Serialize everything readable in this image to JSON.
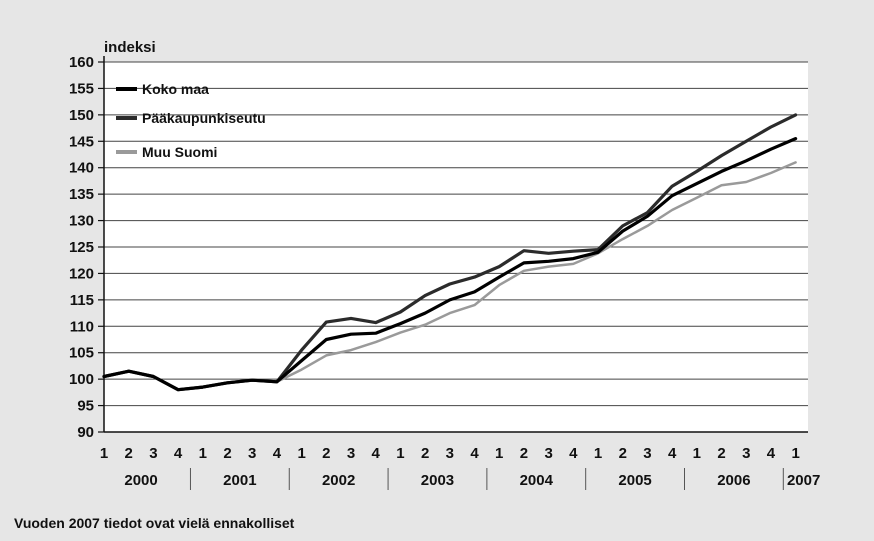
{
  "chart_data": {
    "type": "line",
    "ylabel": "indeksi",
    "ylim": [
      90,
      160
    ],
    "ytick_step": 5,
    "grid": true,
    "legend_position": "top-left",
    "quarters": [
      "1",
      "2",
      "3",
      "4",
      "1",
      "2",
      "3",
      "4",
      "1",
      "2",
      "3",
      "4",
      "1",
      "2",
      "3",
      "4",
      "1",
      "2",
      "3",
      "4",
      "1",
      "2",
      "3",
      "4",
      "1",
      "2",
      "3",
      "4",
      "1"
    ],
    "years": [
      {
        "label": "2000",
        "quarter_count": 4
      },
      {
        "label": "2001",
        "quarter_count": 4
      },
      {
        "label": "2002",
        "quarter_count": 4
      },
      {
        "label": "2003",
        "quarter_count": 4
      },
      {
        "label": "2004",
        "quarter_count": 4
      },
      {
        "label": "2005",
        "quarter_count": 4
      },
      {
        "label": "2006",
        "quarter_count": 4
      },
      {
        "label": "2007",
        "quarter_count": 1
      }
    ],
    "series": [
      {
        "name": "Koko maa",
        "color": "#000000",
        "values": [
          100.5,
          101.5,
          100.5,
          98.0,
          98.5,
          99.3,
          99.8,
          99.5,
          103.5,
          107.5,
          108.5,
          108.7,
          110.5,
          112.5,
          115.0,
          116.5,
          119.3,
          122.0,
          122.3,
          122.8,
          124.0,
          128.0,
          130.8,
          134.7,
          137.0,
          139.3,
          141.3,
          143.5,
          145.5
        ]
      },
      {
        "name": "Pääkaupunkiseutu",
        "color": "#2b2b2b",
        "values": [
          100.5,
          101.5,
          100.5,
          98.0,
          98.5,
          99.3,
          99.8,
          99.5,
          105.5,
          110.8,
          111.5,
          110.7,
          112.7,
          115.8,
          118.0,
          119.3,
          121.3,
          124.3,
          123.8,
          124.2,
          124.5,
          129.0,
          131.5,
          136.5,
          139.3,
          142.3,
          145.0,
          147.7,
          150.0
        ]
      },
      {
        "name": "Muu Suomi",
        "color": "#9a9a9a",
        "values": [
          100.5,
          101.5,
          100.5,
          98.0,
          98.5,
          99.3,
          99.8,
          99.5,
          101.8,
          104.5,
          105.5,
          107.0,
          108.8,
          110.3,
          112.5,
          114.0,
          117.8,
          120.5,
          121.3,
          121.8,
          123.8,
          126.5,
          129.0,
          132.0,
          134.3,
          136.7,
          137.3,
          139.0,
          141.0
        ]
      }
    ],
    "footnote": "Vuoden 2007 tiedot ovat vielä ennakolliset"
  }
}
